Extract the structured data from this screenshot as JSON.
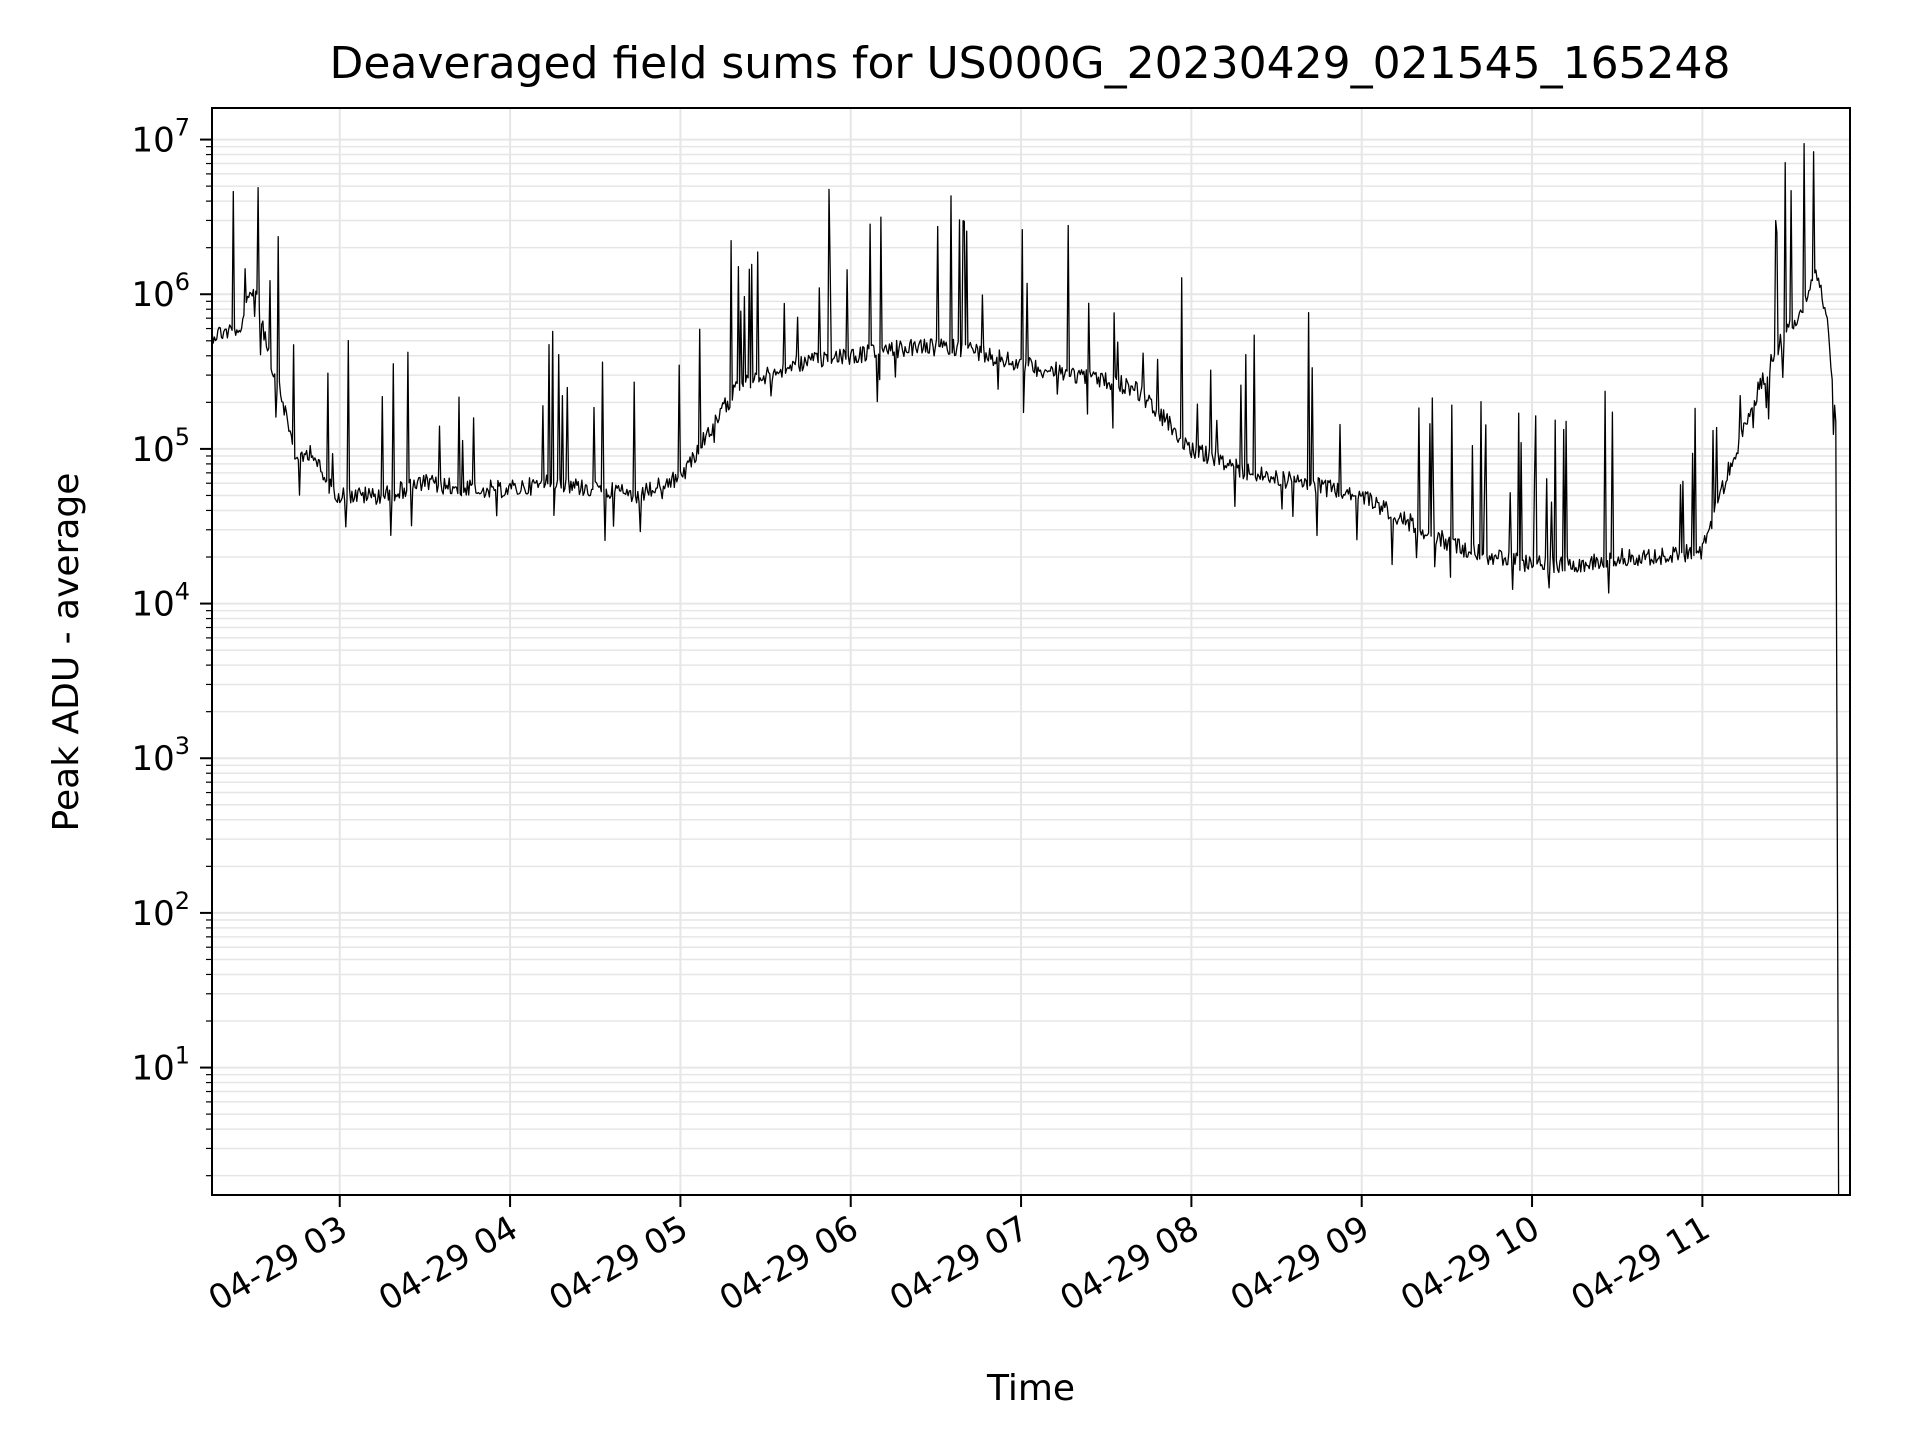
{
  "chart_data": {
    "type": "line",
    "title": "Deaveraged field sums for US000G_20230429_021545_165248",
    "xlabel": "Time",
    "ylabel": "Peak ADU - average",
    "y_scale": "log",
    "ylim": [
      1.5,
      16000000
    ],
    "xlim": [
      "2023-04-29 02:15",
      "2023-04-29 11:52"
    ],
    "grid": "major and minor",
    "x_ticks": [
      "04-29 03",
      "04-29 04",
      "04-29 05",
      "04-29 06",
      "04-29 07",
      "04-29 08",
      "04-29 09",
      "04-29 10",
      "04-29 11"
    ],
    "y_ticks": [
      {
        "base": "10",
        "exp": "1"
      },
      {
        "base": "10",
        "exp": "2"
      },
      {
        "base": "10",
        "exp": "3"
      },
      {
        "base": "10",
        "exp": "4"
      },
      {
        "base": "10",
        "exp": "5"
      },
      {
        "base": "10",
        "exp": "6"
      },
      {
        "base": "10",
        "exp": "7"
      }
    ],
    "series": [
      {
        "color": "#000000",
        "x": [
          "2023-04-29 02:15",
          "2023-04-29 02:25",
          "2023-04-29 02:30",
          "2023-04-29 02:35",
          "2023-04-29 02:40",
          "2023-04-29 02:45",
          "2023-04-29 02:50",
          "2023-04-29 02:55",
          "2023-04-29 03:00",
          "2023-04-29 03:15",
          "2023-04-29 03:30",
          "2023-04-29 03:45",
          "2023-04-29 04:00",
          "2023-04-29 04:15",
          "2023-04-29 04:30",
          "2023-04-29 04:45",
          "2023-04-29 05:00",
          "2023-04-29 05:20",
          "2023-04-29 05:40",
          "2023-04-29 06:00",
          "2023-04-29 06:20",
          "2023-04-29 06:40",
          "2023-04-29 07:00",
          "2023-04-29 07:20",
          "2023-04-29 07:40",
          "2023-04-29 08:00",
          "2023-04-29 08:20",
          "2023-04-29 08:40",
          "2023-04-29 09:00",
          "2023-04-29 09:15",
          "2023-04-29 09:30",
          "2023-04-29 09:45",
          "2023-04-29 10:00",
          "2023-04-29 10:15",
          "2023-04-29 10:30",
          "2023-04-29 10:45",
          "2023-04-29 11:00",
          "2023-04-29 11:10",
          "2023-04-29 11:20",
          "2023-04-29 11:30",
          "2023-04-29 11:35",
          "2023-04-29 11:40",
          "2023-04-29 11:44",
          "2023-04-29 11:47",
          "2023-04-29 11:48"
        ],
        "y": [
          550000,
          600000,
          1200000,
          400000,
          200000,
          80000,
          100000,
          60000,
          50000,
          50000,
          60000,
          55000,
          55000,
          60000,
          55000,
          50000,
          65000,
          250000,
          350000,
          400000,
          450000,
          450000,
          350000,
          300000,
          250000,
          100000,
          70000,
          60000,
          50000,
          35000,
          25000,
          20000,
          18000,
          18000,
          20000,
          20000,
          22000,
          80000,
          250000,
          600000,
          800000,
          1500000,
          700000,
          150000,
          1.5
        ]
      }
    ]
  }
}
